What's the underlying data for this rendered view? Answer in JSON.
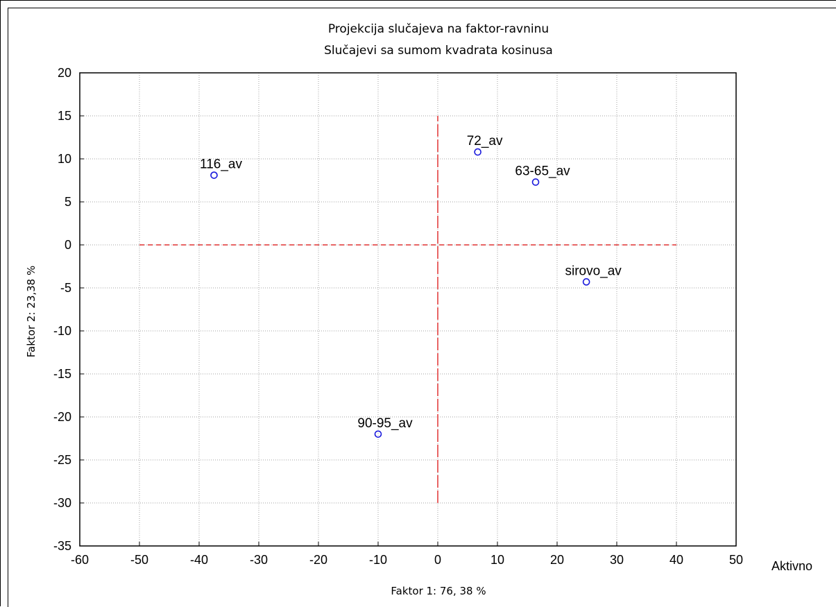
{
  "chart_data": {
    "type": "scatter",
    "title": "Projekcija slučajeva na faktor-ravninu",
    "subtitle": "Slučajevi sa sumom kvadrata kosinusa",
    "xlabel": "Faktor 1: 76, 38 %",
    "ylabel": "Faktor 2: 23,38 %",
    "legend": "Aktivno",
    "xlim": [
      -60,
      50
    ],
    "ylim": [
      -35,
      20
    ],
    "xticks": [
      "-60",
      "-50",
      "-40",
      "-30",
      "-20",
      "-10",
      "0",
      "10",
      "20",
      "30",
      "40",
      "50"
    ],
    "yticks": [
      "20",
      "15",
      "10",
      "5",
      "0",
      "-5",
      "-10",
      "-15",
      "-20",
      "-25",
      "-30",
      "-35"
    ],
    "grid": true,
    "reference_lines": {
      "color": "#e03030",
      "horizontal": {
        "y": 0,
        "x_from": -50,
        "x_to": 40
      },
      "vertical": {
        "x": 0,
        "y_from": -30,
        "y_to": 15
      }
    },
    "point_color": "#1a1adc",
    "points": [
      {
        "label": "116_av",
        "x": -37.5,
        "y": 8.1
      },
      {
        "label": "72_av",
        "x": 6.7,
        "y": 10.8
      },
      {
        "label": "63-65_av",
        "x": 16.4,
        "y": 7.3
      },
      {
        "label": "sirovo_av",
        "x": 24.9,
        "y": -4.3
      },
      {
        "label": "90-95_av",
        "x": -10.0,
        "y": -22.0
      }
    ]
  }
}
